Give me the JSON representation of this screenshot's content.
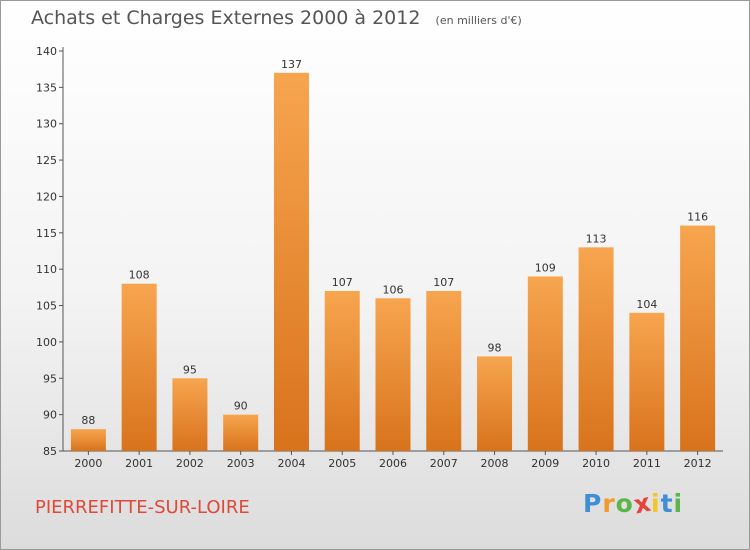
{
  "chart_data": {
    "type": "bar",
    "title": "Achats et Charges Externes 2000 à 2012",
    "unit_label": "(en milliers d'€)",
    "categories": [
      "2000",
      "2001",
      "2002",
      "2003",
      "2004",
      "2005",
      "2006",
      "2007",
      "2008",
      "2009",
      "2010",
      "2011",
      "2012"
    ],
    "values": [
      88,
      108,
      95,
      90,
      137,
      107,
      106,
      107,
      98,
      109,
      113,
      104,
      116
    ],
    "ylim": [
      85,
      140
    ],
    "yticks": [
      85,
      90,
      95,
      100,
      105,
      110,
      115,
      120,
      125,
      130,
      135,
      140
    ],
    "grid": false,
    "bar_color_top": "#f7a54f",
    "bar_color_bottom": "#d8731c"
  },
  "commune": "PIERREFITTE-SUR-LOIRE",
  "logo": {
    "letters": [
      "P",
      "r",
      "o",
      "x",
      "i",
      "t",
      "i"
    ],
    "colors": [
      "#3f8fd6",
      "#f39a2b",
      "#5bb54a",
      "#e8423a",
      "#f3c623",
      "#3f8fd6",
      "#5bb54a"
    ]
  }
}
